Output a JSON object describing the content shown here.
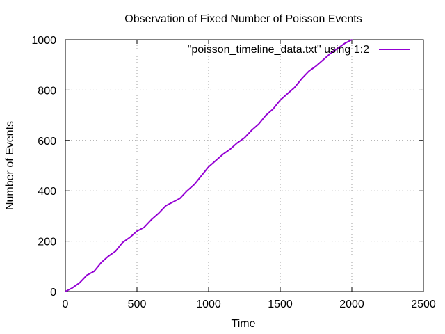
{
  "chart_data": {
    "type": "line",
    "title": "Observation of Fixed Number of Poisson Events",
    "xlabel": "Time",
    "ylabel": "Number of Events",
    "xlim": [
      0,
      2500
    ],
    "ylim": [
      0,
      1000
    ],
    "x_ticks": [
      0,
      500,
      1000,
      1500,
      2000,
      2500
    ],
    "y_ticks": [
      0,
      200,
      400,
      600,
      800,
      1000
    ],
    "x_tick_labels": [
      "0",
      "500",
      "1000",
      "1500",
      "2000",
      "2500"
    ],
    "y_tick_labels": [
      "0",
      "200",
      "400",
      "600",
      "800",
      "1000"
    ],
    "grid": true,
    "legend_position": "top-right",
    "series": [
      {
        "name": "\"poisson_timeline_data.txt\" using 1:2",
        "color": "#9400d3",
        "x": [
          0,
          50,
          100,
          150,
          200,
          250,
          300,
          350,
          400,
          450,
          500,
          550,
          600,
          650,
          700,
          750,
          800,
          850,
          900,
          950,
          1000,
          1050,
          1100,
          1150,
          1200,
          1250,
          1300,
          1350,
          1400,
          1450,
          1500,
          1550,
          1600,
          1650,
          1700,
          1750,
          1800,
          1850,
          1900,
          1950,
          2000
        ],
        "y": [
          0,
          15,
          35,
          65,
          80,
          115,
          140,
          160,
          195,
          215,
          240,
          255,
          285,
          310,
          340,
          355,
          370,
          400,
          425,
          460,
          495,
          520,
          545,
          565,
          590,
          610,
          640,
          665,
          700,
          725,
          760,
          785,
          810,
          845,
          875,
          895,
          920,
          945,
          965,
          985,
          1000
        ]
      }
    ]
  }
}
